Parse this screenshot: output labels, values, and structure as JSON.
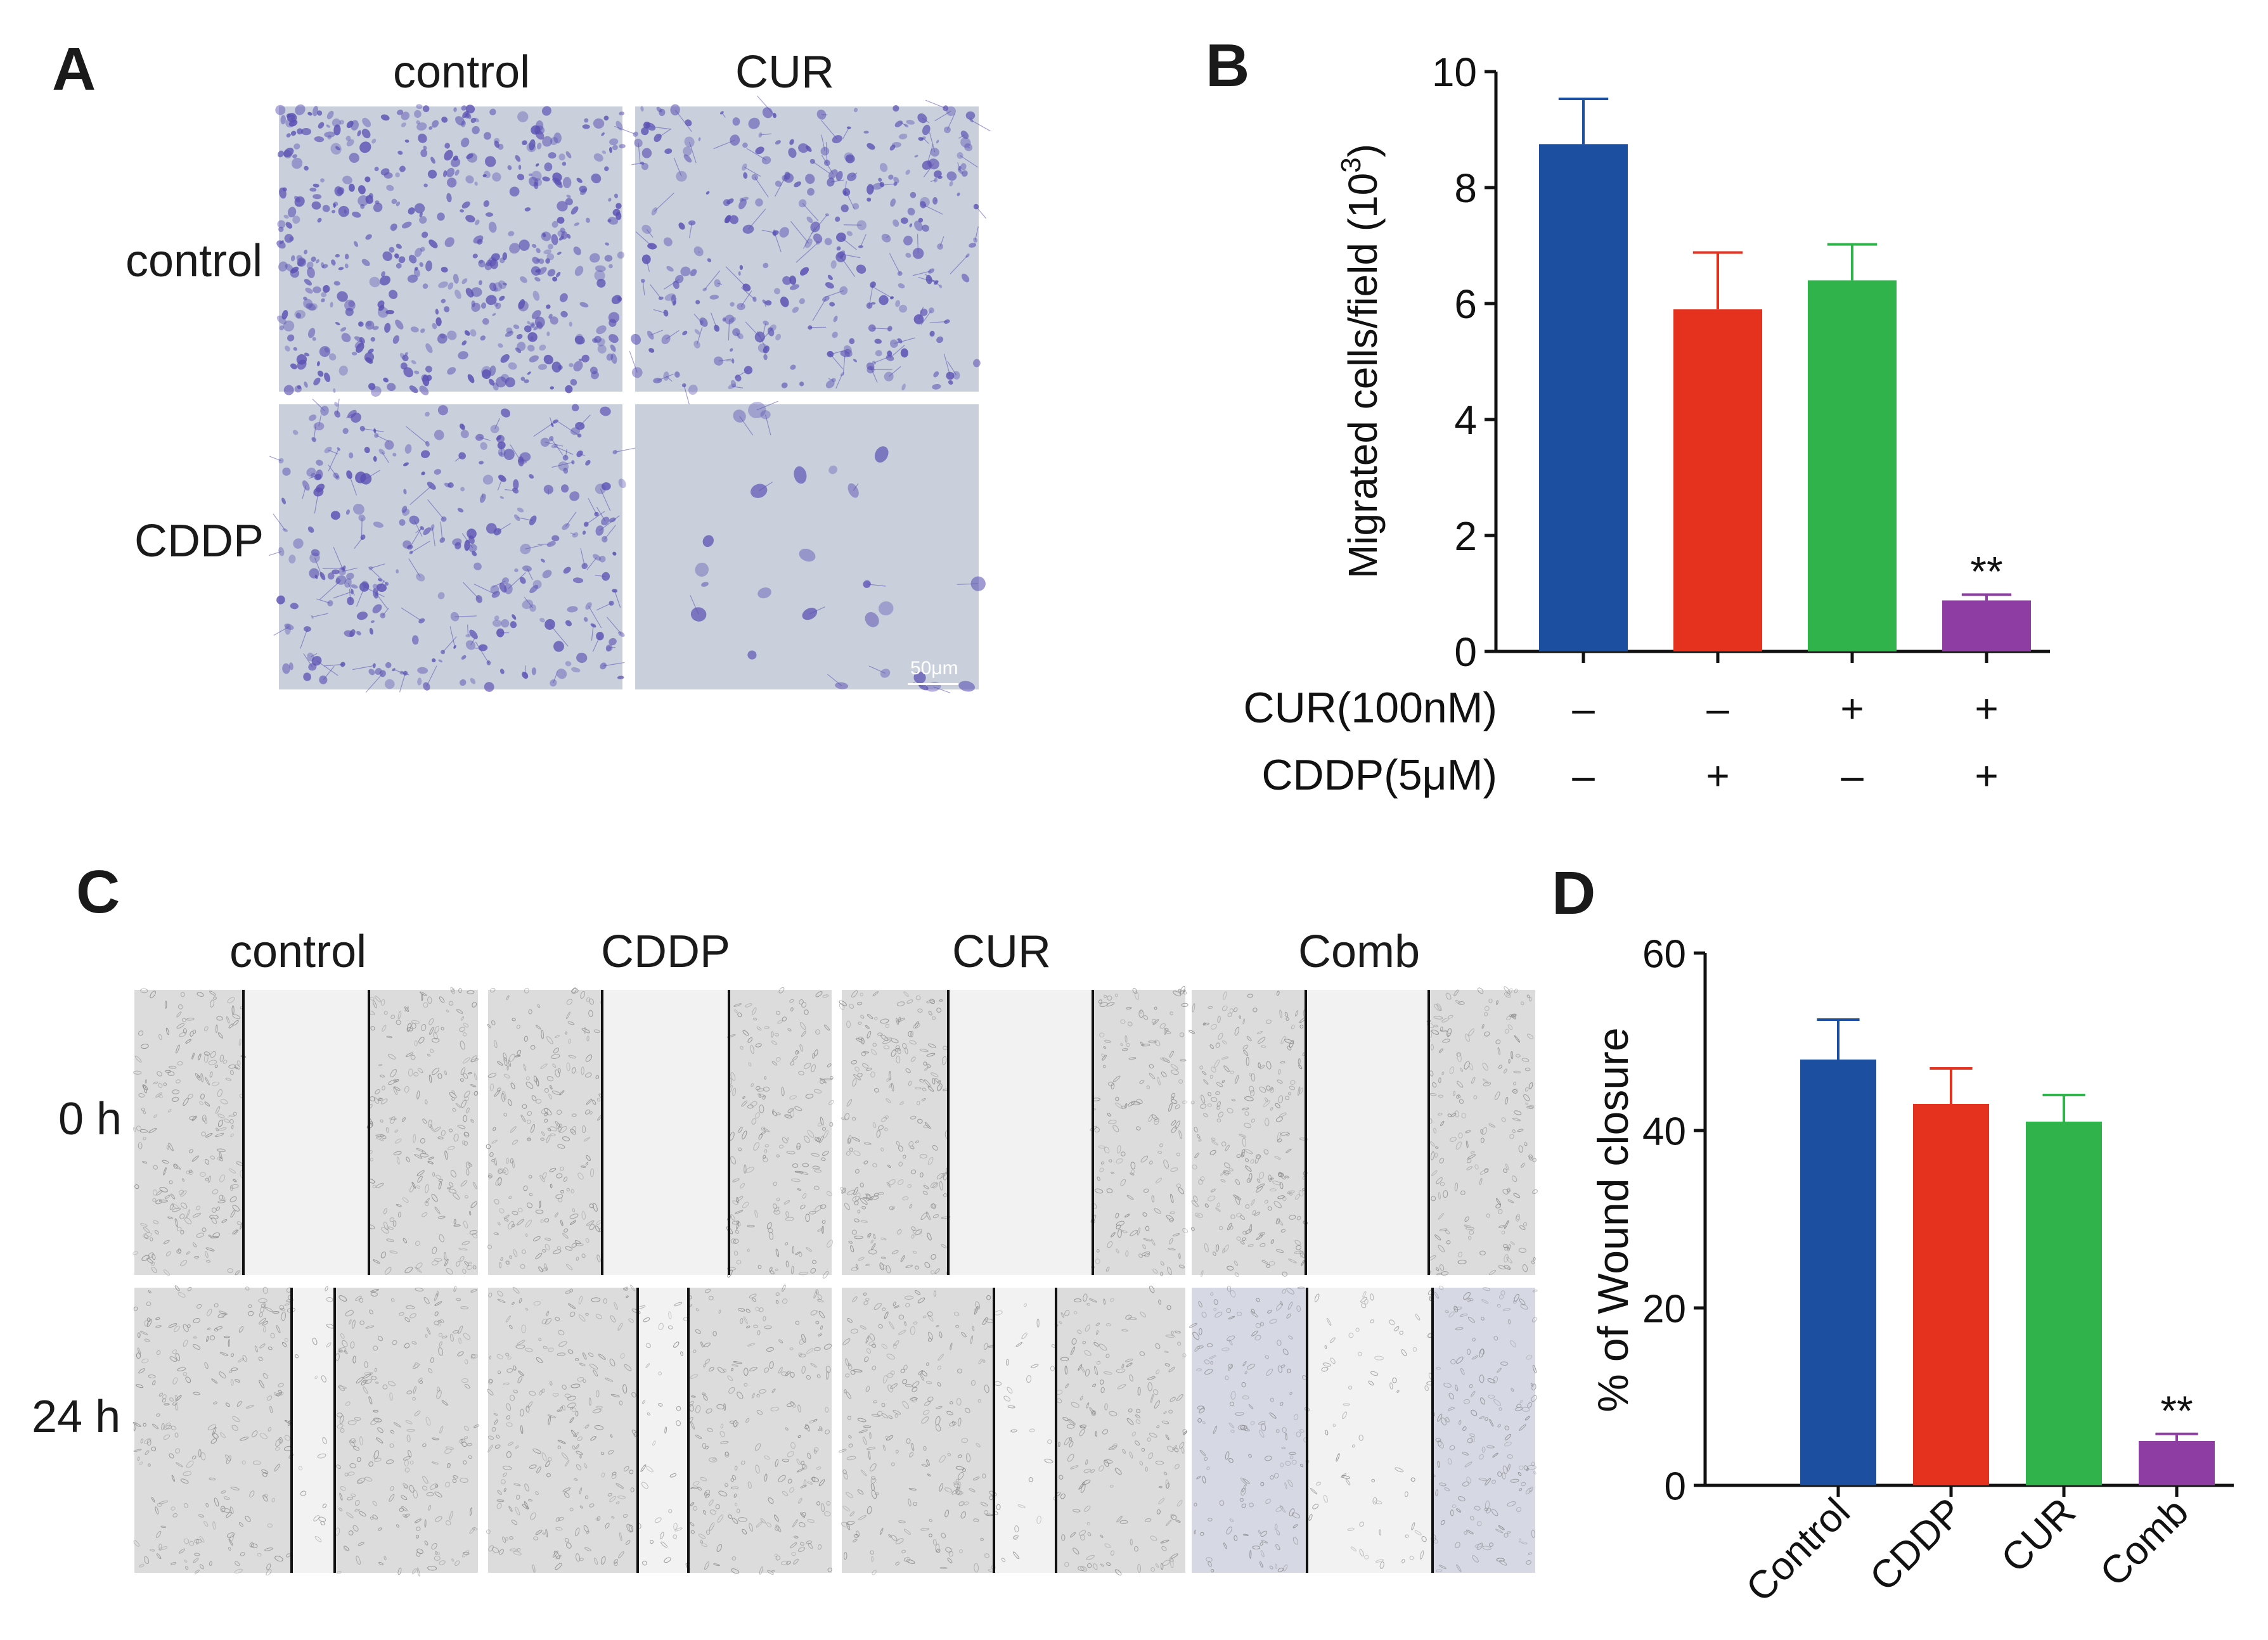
{
  "panels": {
    "A": {
      "letter": "A",
      "col_labels": [
        "control",
        "CUR"
      ],
      "row_labels": [
        "control",
        "CDDP"
      ],
      "scale_bar": "50μm"
    },
    "B": {
      "letter": "B"
    },
    "C": {
      "letter": "C",
      "col_labels": [
        "control",
        "CDDP",
        "CUR",
        "Comb"
      ],
      "row_labels": [
        "0 h",
        "24 h"
      ]
    },
    "D": {
      "letter": "D"
    }
  },
  "colors": {
    "blue": "#1d4fa0",
    "red": "#e4321f",
    "green": "#2fb34a",
    "purple": "#8e3ea3",
    "stain_bg": "#c9d0dc",
    "stain_cell": "#5a4fb3",
    "phase_bg": "#d9d9d9"
  },
  "chart_data": [
    {
      "type": "bar",
      "panel": "B",
      "ylabel": "Migrated cells/field (10",
      "ylabel_sup": "3",
      "ylabel_close": ")",
      "ylim": [
        0,
        10
      ],
      "yticks": [
        0,
        2,
        4,
        6,
        8,
        10
      ],
      "values": [
        8.75,
        5.9,
        6.4,
        0.88
      ],
      "errors": [
        0.78,
        0.98,
        0.62,
        0.1
      ],
      "colors": [
        "#1d4fa0",
        "#e4321f",
        "#2fb34a",
        "#8e3ea3"
      ],
      "significance": [
        "",
        "",
        "",
        "**"
      ],
      "conditions": [
        {
          "label": "CUR(100nM)",
          "signs": [
            "–",
            "–",
            "+",
            "+"
          ]
        },
        {
          "label": "CDDP(5μM)",
          "signs": [
            "–",
            "+",
            "–",
            "+"
          ]
        }
      ]
    },
    {
      "type": "bar",
      "panel": "D",
      "ylabel": "% of Wound closure",
      "ylim": [
        0,
        60
      ],
      "yticks": [
        0,
        20,
        40,
        60
      ],
      "categories": [
        "Control",
        "CDDP",
        "CUR",
        "Comb"
      ],
      "values": [
        48,
        43,
        41,
        5
      ],
      "errors": [
        4.5,
        4,
        3,
        0.8
      ],
      "colors": [
        "#1d4fa0",
        "#e4321f",
        "#2fb34a",
        "#8e3ea3"
      ],
      "significance": [
        "",
        "",
        "",
        "**"
      ]
    }
  ]
}
